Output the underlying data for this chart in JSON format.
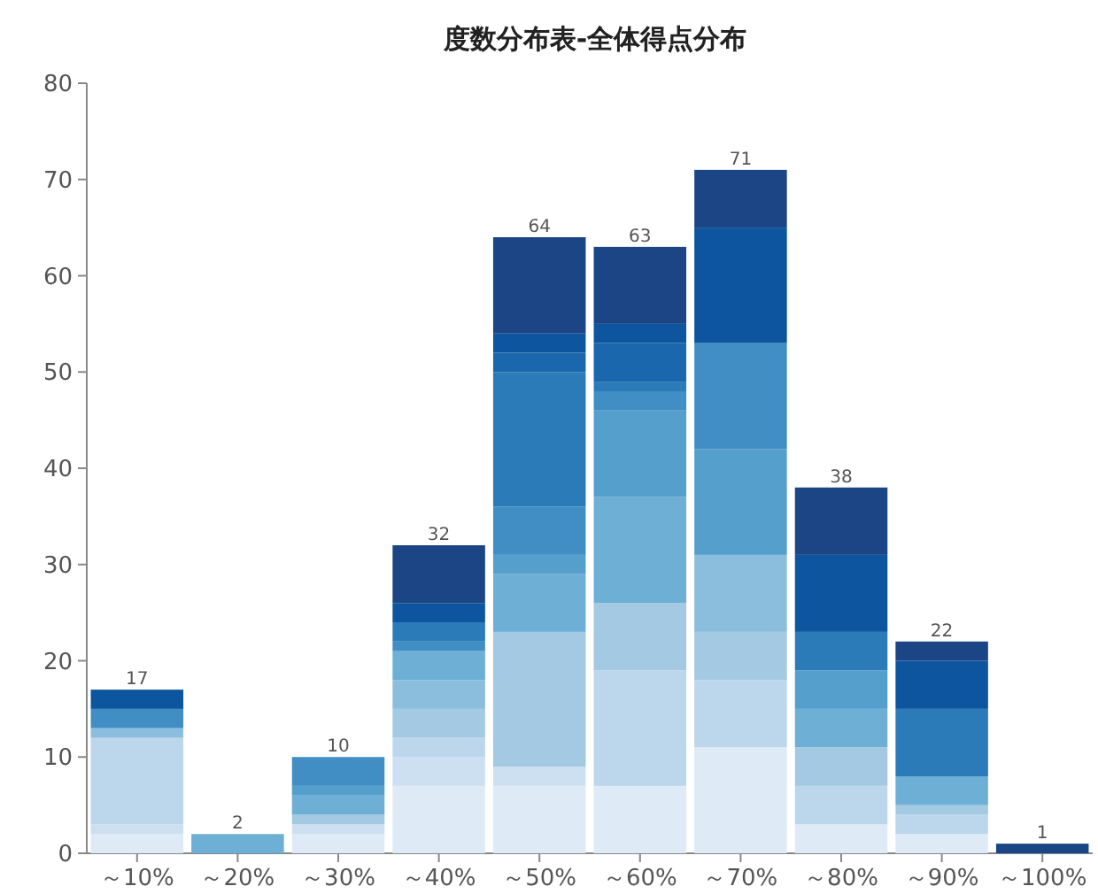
{
  "chart_data": {
    "type": "bar",
    "title": "度数分布表-全体得点分布",
    "categories": [
      "～10%",
      "～20%",
      "～30%",
      "～40%",
      "～50%",
      "～60%",
      "～70%",
      "～80%",
      "～90%",
      "～100%"
    ],
    "stacked": true,
    "series": [
      {
        "color": "#deebf7",
        "values": [
          2,
          null,
          2,
          7,
          7,
          7,
          11,
          3,
          2,
          null
        ]
      },
      {
        "color": "#cde0f1",
        "values": [
          1,
          null,
          1,
          3,
          2,
          null,
          null,
          null,
          null,
          null
        ]
      },
      {
        "color": "#bcd6eb",
        "values": [
          9,
          null,
          null,
          2,
          null,
          12,
          7,
          4,
          2,
          null
        ]
      },
      {
        "color": "#a3c9e3",
        "values": [
          null,
          null,
          1,
          3,
          14,
          7,
          5,
          4,
          1,
          null
        ]
      },
      {
        "color": "#8bbedc",
        "values": [
          1,
          null,
          null,
          3,
          null,
          null,
          8,
          null,
          null,
          null
        ]
      },
      {
        "color": "#6eafd6",
        "values": [
          null,
          2,
          2,
          3,
          6,
          11,
          null,
          4,
          3,
          null
        ]
      },
      {
        "color": "#559fcd",
        "values": [
          null,
          null,
          1,
          null,
          2,
          9,
          11,
          4,
          null,
          null
        ]
      },
      {
        "color": "#408ec4",
        "values": [
          2,
          null,
          3,
          1,
          5,
          2,
          11,
          null,
          null,
          null
        ]
      },
      {
        "color": "#2c7bb9",
        "values": [
          null,
          null,
          null,
          2,
          14,
          1,
          null,
          4,
          7,
          null
        ]
      },
      {
        "color": "#1a67ad",
        "values": [
          null,
          null,
          null,
          null,
          2,
          4,
          null,
          null,
          null,
          null
        ]
      },
      {
        "color": "#0d559e",
        "values": [
          2,
          null,
          null,
          2,
          2,
          2,
          12,
          8,
          5,
          null
        ]
      },
      {
        "color": "#1c4585",
        "values": [
          null,
          null,
          null,
          6,
          10,
          8,
          6,
          7,
          2,
          1
        ]
      }
    ],
    "totals": [
      "17",
      "2",
      "10",
      "32",
      "64",
      "63",
      "71",
      "38",
      "22",
      "1"
    ],
    "ylim": [
      0,
      80
    ],
    "yticks": [
      0,
      10,
      20,
      30,
      40,
      50,
      60,
      70,
      80
    ]
  }
}
